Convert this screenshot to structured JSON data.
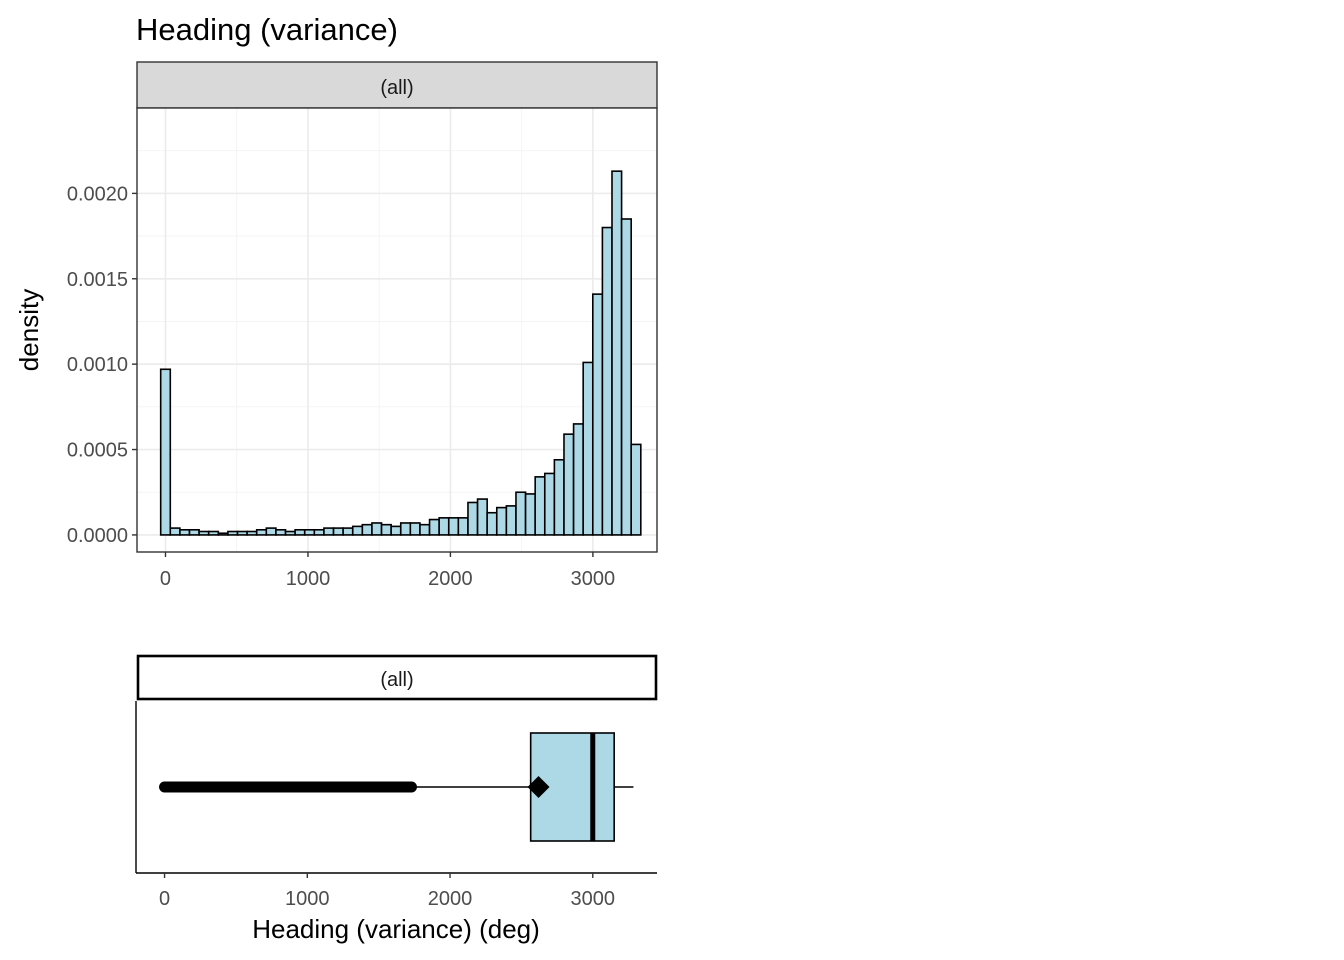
{
  "title": "Heading (variance)",
  "chart_data": [
    {
      "type": "histogram",
      "facet": "(all)",
      "ylabel": "density",
      "xlim": [
        -200,
        3450
      ],
      "ylim": [
        -0.0001,
        0.0025
      ],
      "xticks": [
        0,
        1000,
        2000,
        3000
      ],
      "xtick_labels": [
        "0",
        "1000",
        "2000",
        "3000"
      ],
      "yticks": [
        0.0,
        0.0005,
        0.001,
        0.0015,
        0.002
      ],
      "ytick_labels": [
        "0.0000",
        "0.0005",
        "0.0010",
        "0.0015",
        "0.0020"
      ],
      "grid": true,
      "bar_fill": "#add8e6",
      "bar_stroke": "#000000",
      "bin_width": 67.4,
      "bins_start": -33.7,
      "densities": [
        0.00097,
        4e-05,
        3e-05,
        3e-05,
        2e-05,
        2e-05,
        1e-05,
        2e-05,
        2e-05,
        2e-05,
        3e-05,
        4e-05,
        3e-05,
        2e-05,
        3e-05,
        3e-05,
        3e-05,
        4e-05,
        4e-05,
        4e-05,
        5e-05,
        6e-05,
        7e-05,
        6e-05,
        5e-05,
        7e-05,
        7e-05,
        6e-05,
        9e-05,
        0.0001,
        0.0001,
        0.0001,
        0.00019,
        0.00021,
        0.00013,
        0.00016,
        0.00017,
        0.00025,
        0.00024,
        0.00034,
        0.00036,
        0.00044,
        0.00059,
        0.00065,
        0.00101,
        0.00141,
        0.0018,
        0.00213,
        0.00185,
        0.00053
      ]
    },
    {
      "type": "boxplot",
      "facet": "(all)",
      "xlabel": "Heading (variance) (deg)",
      "xlim": [
        -200,
        3450
      ],
      "xticks": [
        0,
        1000,
        2000,
        3000
      ],
      "xtick_labels": [
        "0",
        "1000",
        "2000",
        "3000"
      ],
      "box_fill": "#add8e6",
      "q1": 2565,
      "median": 3000,
      "q3": 3150,
      "whisker_low": 1730,
      "whisker_high": 3285,
      "mean": 2620,
      "outliers_range": [
        0,
        1730
      ]
    }
  ]
}
